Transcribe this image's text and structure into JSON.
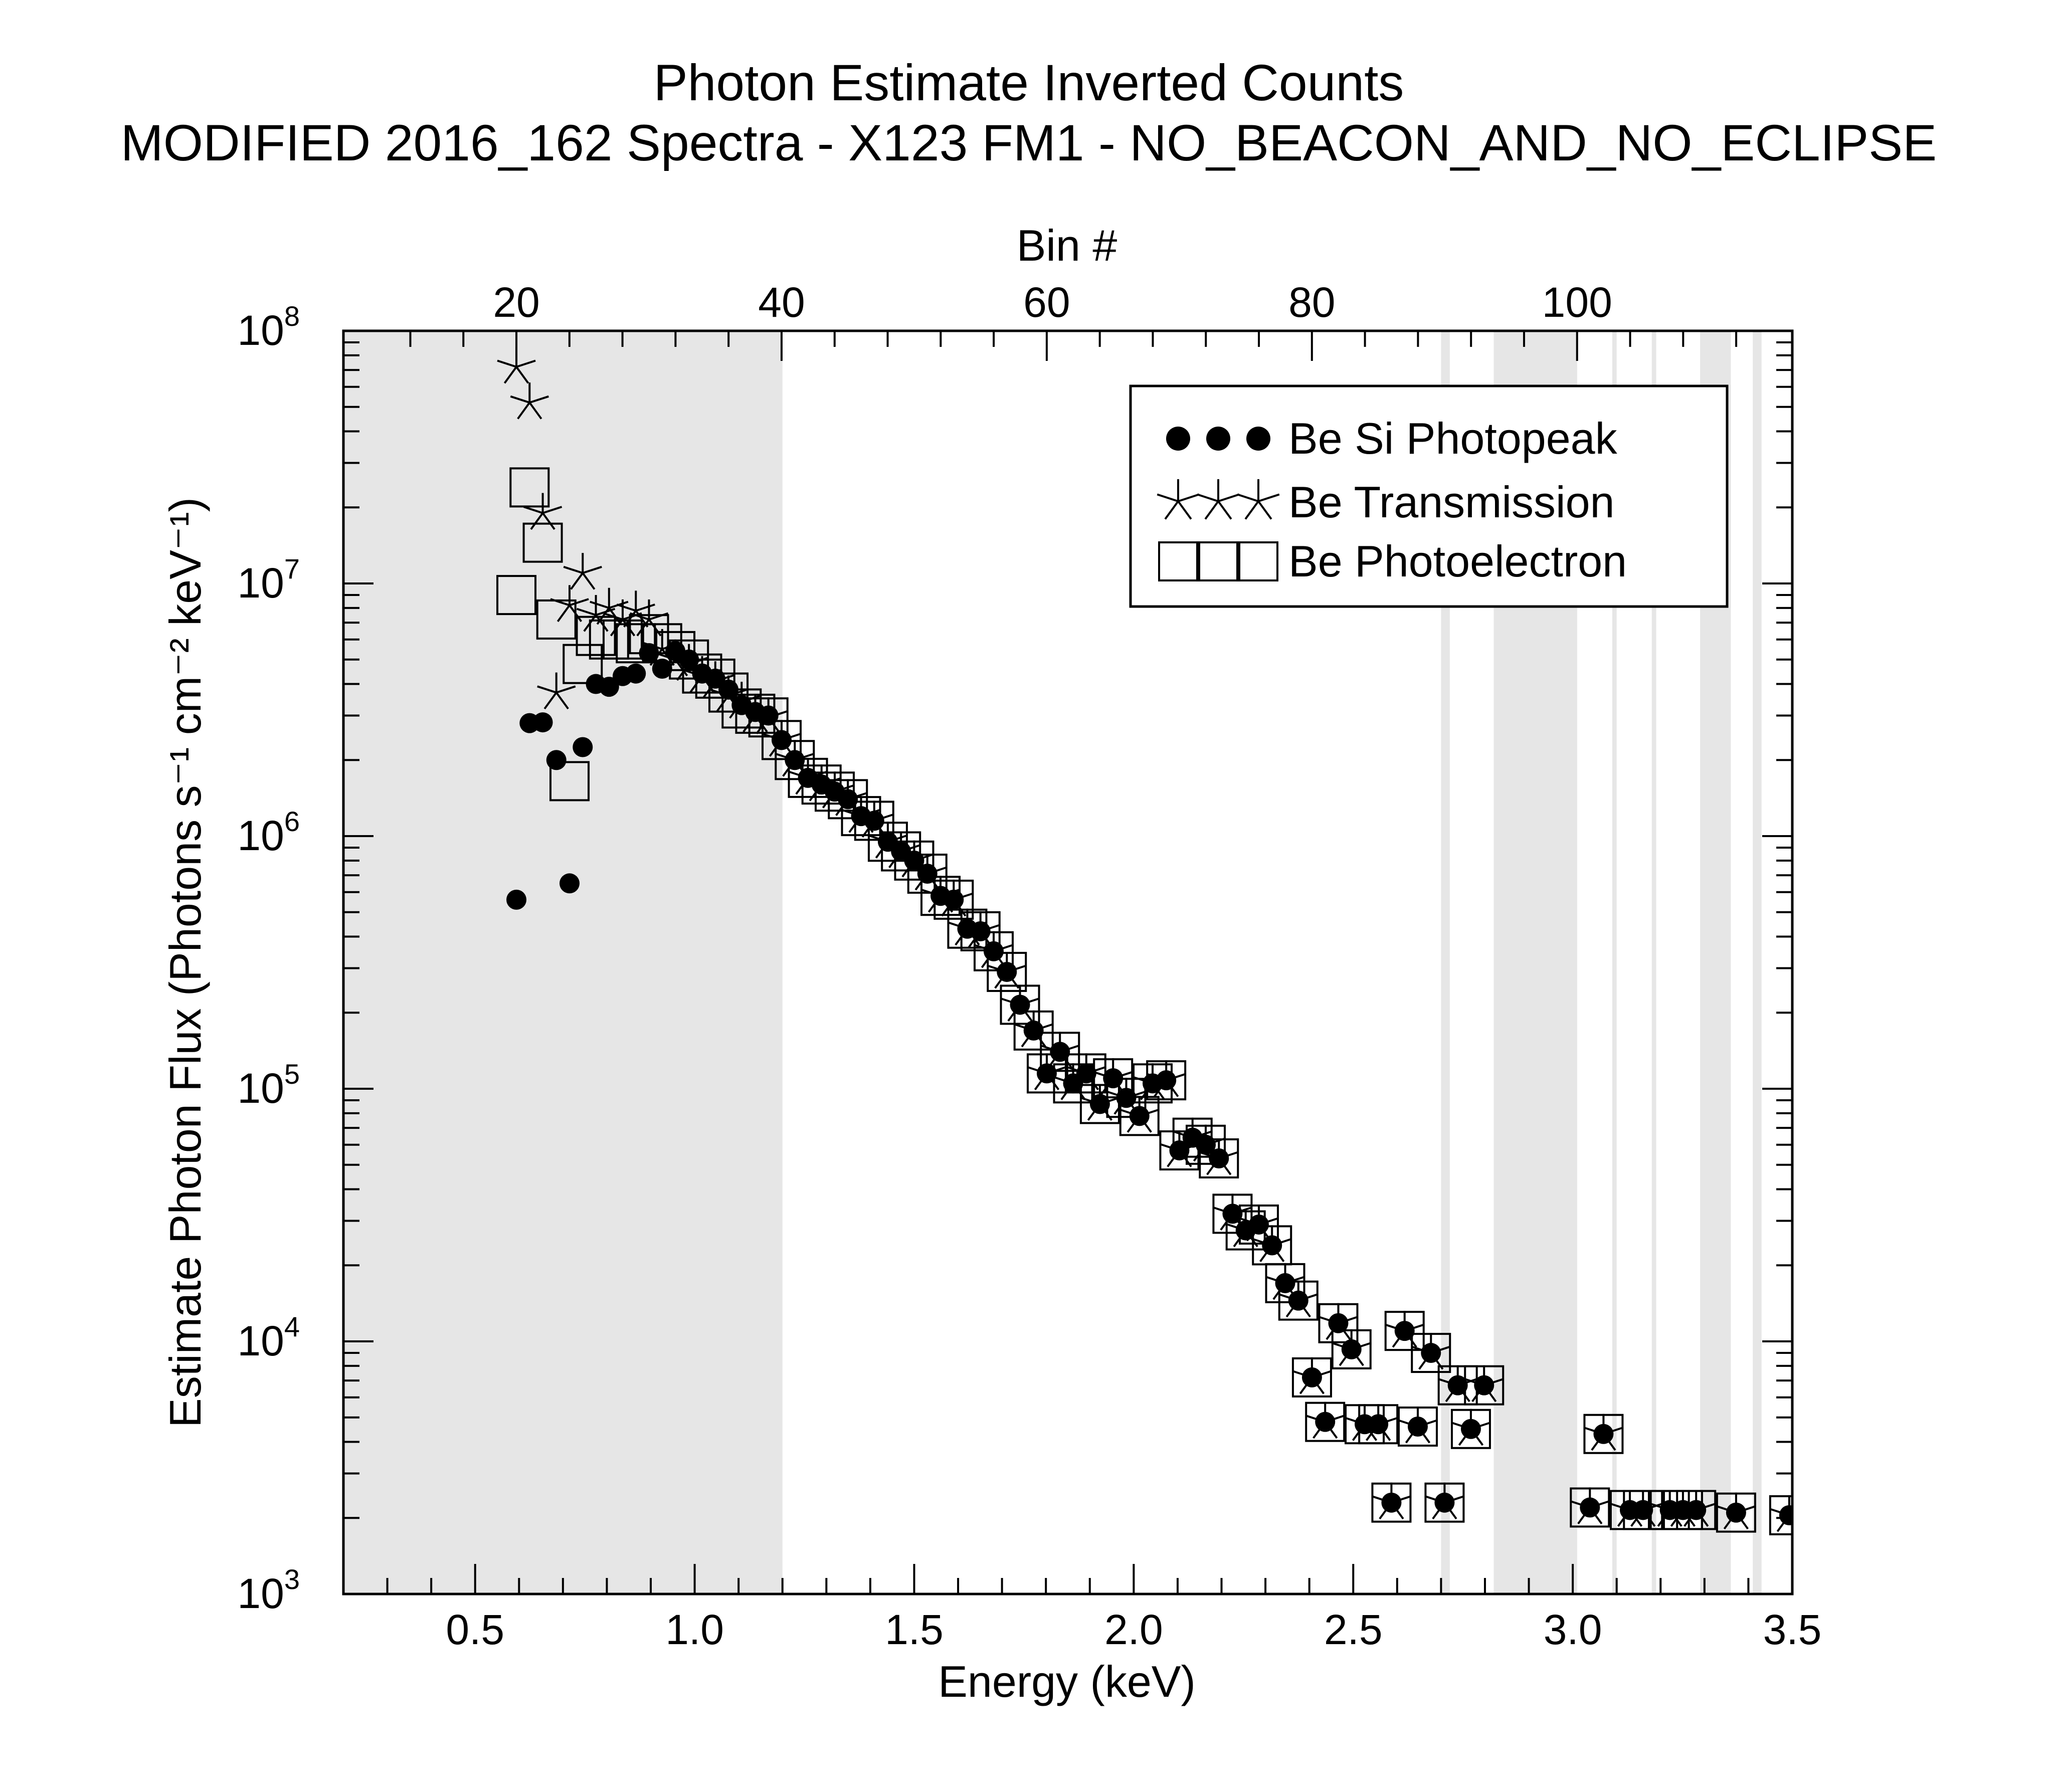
{
  "chart_data": {
    "type": "scatter",
    "title": "Photon Estimate Inverted Counts",
    "subtitle": "MODIFIED 2016_162 Spectra - X123 FM1 - NO_BEACON_AND_NO_ECLIPSE",
    "xlabel": "Energy (keV)",
    "ylabel": "Estimate Photon Flux (Photons s⁻¹ cm⁻² keV⁻¹)",
    "x2label": "Bin #",
    "xlim": [
      0.2,
      3.5
    ],
    "ylim": [
      1000,
      100000000
    ],
    "yscale": "log",
    "x_ticks": [
      {
        "value": 0.5,
        "label": "0.5"
      },
      {
        "value": 1.0,
        "label": "1.0"
      },
      {
        "value": 1.5,
        "label": "1.5"
      },
      {
        "value": 2.0,
        "label": "2.0"
      },
      {
        "value": 2.5,
        "label": "2.5"
      },
      {
        "value": 3.0,
        "label": "3.0"
      },
      {
        "value": 3.5,
        "label": "3.5"
      }
    ],
    "y_ticks": [
      {
        "value": 1000,
        "base": "10",
        "exp": "3"
      },
      {
        "value": 10000,
        "base": "10",
        "exp": "4"
      },
      {
        "value": 100000,
        "base": "10",
        "exp": "5"
      },
      {
        "value": 1000000,
        "base": "10",
        "exp": "6"
      },
      {
        "value": 10000000,
        "base": "10",
        "exp": "7"
      },
      {
        "value": 100000000,
        "base": "10",
        "exp": "8"
      }
    ],
    "bin_ticks": [
      {
        "bin": 20,
        "label": "20"
      },
      {
        "bin": 40,
        "label": "40"
      },
      {
        "bin": 60,
        "label": "60"
      },
      {
        "bin": 80,
        "label": "80"
      },
      {
        "bin": 100,
        "label": "100"
      }
    ],
    "shaded_regions_keV": [
      [
        0.2,
        1.2
      ],
      [
        2.7,
        2.72
      ],
      [
        2.82,
        3.01
      ],
      [
        3.09,
        3.1
      ],
      [
        3.18,
        3.19
      ],
      [
        3.29,
        3.36
      ],
      [
        3.41,
        3.43
      ]
    ],
    "legend": {
      "position": "top-right",
      "entries": [
        "Be Si Photopeak",
        "Be Transmission",
        "Be Photoelectron"
      ]
    },
    "shading_color": "#e6e6e6",
    "series": [
      {
        "name": "Be Si Photopeak",
        "marker": "filled-circle",
        "points": [
          [
            0.594,
            560000
          ],
          [
            0.624,
            2800000
          ],
          [
            0.654,
            2820000
          ],
          [
            0.685,
            2000000
          ],
          [
            0.715,
            650000
          ],
          [
            0.745,
            2250000
          ],
          [
            0.775,
            4000000
          ],
          [
            0.805,
            3900000
          ],
          [
            0.836,
            4300000
          ],
          [
            0.866,
            4400000
          ],
          [
            0.896,
            5300000
          ],
          [
            0.926,
            4600000
          ],
          [
            0.956,
            5400000
          ],
          [
            0.987,
            5000000
          ],
          [
            1.017,
            4400000
          ],
          [
            1.047,
            4200000
          ],
          [
            1.077,
            3800000
          ],
          [
            1.107,
            3300000
          ],
          [
            1.138,
            3100000
          ],
          [
            1.168,
            3000000
          ],
          [
            1.198,
            2400000
          ],
          [
            1.228,
            2000000
          ],
          [
            1.258,
            1700000
          ],
          [
            1.289,
            1600000
          ],
          [
            1.319,
            1500000
          ],
          [
            1.349,
            1400000
          ],
          [
            1.379,
            1200000
          ],
          [
            1.409,
            1150000
          ],
          [
            1.44,
            950000
          ],
          [
            1.47,
            870000
          ],
          [
            1.5,
            800000
          ],
          [
            1.53,
            710000
          ],
          [
            1.56,
            580000
          ],
          [
            1.59,
            560000
          ],
          [
            1.621,
            430000
          ],
          [
            1.651,
            420000
          ],
          [
            1.681,
            350000
          ],
          [
            1.711,
            290000
          ],
          [
            1.741,
            215000
          ],
          [
            1.772,
            170000
          ],
          [
            1.802,
            115000
          ],
          [
            1.832,
            140000
          ],
          [
            1.862,
            105000
          ],
          [
            1.892,
            115000
          ],
          [
            1.923,
            87000
          ],
          [
            1.953,
            110000
          ],
          [
            1.983,
            92000
          ],
          [
            2.013,
            78000
          ],
          [
            2.043,
            105000
          ],
          [
            2.074,
            108000
          ],
          [
            2.104,
            57000
          ],
          [
            2.134,
            64000
          ],
          [
            2.164,
            60000
          ],
          [
            2.194,
            53000
          ],
          [
            2.225,
            32000
          ],
          [
            2.255,
            27500
          ],
          [
            2.285,
            29000
          ],
          [
            2.315,
            24000
          ],
          [
            2.345,
            17000
          ],
          [
            2.375,
            14500
          ],
          [
            2.406,
            7200
          ],
          [
            2.436,
            4800
          ],
          [
            2.466,
            11800
          ],
          [
            2.496,
            9300
          ],
          [
            2.526,
            4700
          ],
          [
            2.557,
            4700
          ],
          [
            2.587,
            2300
          ],
          [
            2.617,
            11000
          ],
          [
            2.647,
            4600
          ],
          [
            2.677,
            9000
          ],
          [
            2.708,
            2300
          ],
          [
            2.738,
            6700
          ],
          [
            2.768,
            4500
          ],
          [
            2.798,
            6700
          ],
          [
            3.039,
            2200
          ],
          [
            3.07,
            4300
          ],
          [
            3.13,
            2150
          ],
          [
            3.16,
            2150
          ],
          [
            3.221,
            2150
          ],
          [
            3.251,
            2150
          ],
          [
            3.281,
            2150
          ],
          [
            3.372,
            2100
          ],
          [
            3.493,
            2050
          ]
        ]
      },
      {
        "name": "Be Transmission",
        "marker": "star",
        "points": [
          [
            0.594,
            72000000
          ],
          [
            0.624,
            52000000
          ],
          [
            0.654,
            19000000
          ],
          [
            0.685,
            3700000
          ],
          [
            0.715,
            8200000
          ],
          [
            0.745,
            11000000
          ],
          [
            0.775,
            7500000
          ],
          [
            0.805,
            8000000
          ],
          [
            0.836,
            7200000
          ],
          [
            0.866,
            7800000
          ],
          [
            0.896,
            7200000
          ],
          [
            0.926,
            5500000
          ],
          [
            0.956,
            5000000
          ],
          [
            0.987,
            4800000
          ],
          [
            1.017,
            4300000
          ],
          [
            1.047,
            4100000
          ],
          [
            1.077,
            3600000
          ],
          [
            1.107,
            3400000
          ],
          [
            1.138,
            3000000
          ],
          [
            1.168,
            2950000
          ],
          [
            1.198,
            2400000
          ],
          [
            1.228,
            2000000
          ],
          [
            1.258,
            1700000
          ],
          [
            1.289,
            1600000
          ],
          [
            1.319,
            1500000
          ],
          [
            1.349,
            1400000
          ],
          [
            1.379,
            1200000
          ],
          [
            1.409,
            1150000
          ],
          [
            1.44,
            950000
          ],
          [
            1.47,
            870000
          ],
          [
            1.5,
            800000
          ],
          [
            1.53,
            710000
          ],
          [
            1.56,
            580000
          ],
          [
            1.59,
            560000
          ],
          [
            1.621,
            430000
          ],
          [
            1.651,
            420000
          ],
          [
            1.681,
            350000
          ],
          [
            1.711,
            290000
          ],
          [
            1.741,
            215000
          ],
          [
            1.772,
            170000
          ],
          [
            1.802,
            115000
          ],
          [
            1.832,
            140000
          ],
          [
            1.862,
            105000
          ],
          [
            1.892,
            115000
          ],
          [
            1.923,
            87000
          ],
          [
            1.953,
            110000
          ],
          [
            1.983,
            92000
          ],
          [
            2.013,
            78000
          ],
          [
            2.043,
            105000
          ],
          [
            2.074,
            108000
          ],
          [
            2.104,
            57000
          ],
          [
            2.134,
            64000
          ],
          [
            2.164,
            60000
          ],
          [
            2.194,
            53000
          ],
          [
            2.225,
            32000
          ],
          [
            2.255,
            27500
          ],
          [
            2.285,
            29000
          ],
          [
            2.315,
            24000
          ],
          [
            2.345,
            17000
          ],
          [
            2.375,
            14500
          ],
          [
            2.406,
            7200
          ],
          [
            2.436,
            4800
          ],
          [
            2.466,
            11800
          ],
          [
            2.496,
            9300
          ],
          [
            2.526,
            4700
          ],
          [
            2.557,
            4700
          ],
          [
            2.587,
            2300
          ],
          [
            2.617,
            11000
          ],
          [
            2.647,
            4600
          ],
          [
            2.677,
            9000
          ],
          [
            2.708,
            2300
          ],
          [
            2.738,
            6700
          ],
          [
            2.768,
            4500
          ],
          [
            2.798,
            6700
          ],
          [
            3.039,
            2200
          ],
          [
            3.07,
            4300
          ],
          [
            3.13,
            2150
          ],
          [
            3.16,
            2150
          ],
          [
            3.221,
            2150
          ],
          [
            3.251,
            2150
          ],
          [
            3.281,
            2150
          ],
          [
            3.372,
            2100
          ],
          [
            3.493,
            2050
          ]
        ]
      },
      {
        "name": "Be Photoelectron",
        "marker": "open-square",
        "points": [
          [
            0.594,
            9000000
          ],
          [
            0.624,
            24000000
          ],
          [
            0.654,
            14500000
          ],
          [
            0.685,
            7200000
          ],
          [
            0.715,
            1650000
          ],
          [
            0.745,
            4800000
          ],
          [
            0.775,
            6200000
          ],
          [
            0.805,
            6000000
          ],
          [
            0.836,
            6000000
          ],
          [
            0.866,
            5800000
          ],
          [
            0.896,
            6300000
          ],
          [
            0.926,
            5800000
          ],
          [
            0.956,
            5400000
          ],
          [
            0.987,
            5000000
          ],
          [
            1.017,
            4400000
          ],
          [
            1.047,
            4200000
          ],
          [
            1.077,
            3700000
          ],
          [
            1.107,
            3200000
          ],
          [
            1.138,
            3050000
          ],
          [
            1.168,
            2950000
          ],
          [
            1.198,
            2400000
          ],
          [
            1.228,
            2000000
          ],
          [
            1.258,
            1700000
          ],
          [
            1.289,
            1600000
          ],
          [
            1.319,
            1500000
          ],
          [
            1.349,
            1400000
          ],
          [
            1.379,
            1200000
          ],
          [
            1.409,
            1150000
          ],
          [
            1.44,
            950000
          ],
          [
            1.47,
            870000
          ],
          [
            1.5,
            800000
          ],
          [
            1.53,
            710000
          ],
          [
            1.56,
            580000
          ],
          [
            1.59,
            560000
          ],
          [
            1.621,
            430000
          ],
          [
            1.651,
            420000
          ],
          [
            1.681,
            350000
          ],
          [
            1.711,
            290000
          ],
          [
            1.741,
            215000
          ],
          [
            1.772,
            170000
          ],
          [
            1.802,
            115000
          ],
          [
            1.832,
            140000
          ],
          [
            1.862,
            105000
          ],
          [
            1.892,
            115000
          ],
          [
            1.923,
            87000
          ],
          [
            1.953,
            110000
          ],
          [
            1.983,
            92000
          ],
          [
            2.013,
            78000
          ],
          [
            2.043,
            105000
          ],
          [
            2.074,
            108000
          ],
          [
            2.104,
            57000
          ],
          [
            2.134,
            64000
          ],
          [
            2.164,
            60000
          ],
          [
            2.194,
            53000
          ],
          [
            2.225,
            32000
          ],
          [
            2.255,
            27500
          ],
          [
            2.285,
            29000
          ],
          [
            2.315,
            24000
          ],
          [
            2.345,
            17000
          ],
          [
            2.375,
            14500
          ],
          [
            2.406,
            7200
          ],
          [
            2.436,
            4800
          ],
          [
            2.466,
            11800
          ],
          [
            2.496,
            9300
          ],
          [
            2.526,
            4700
          ],
          [
            2.557,
            4700
          ],
          [
            2.587,
            2300
          ],
          [
            2.617,
            11000
          ],
          [
            2.647,
            4600
          ],
          [
            2.677,
            9000
          ],
          [
            2.708,
            2300
          ],
          [
            2.738,
            6700
          ],
          [
            2.768,
            4500
          ],
          [
            2.798,
            6700
          ],
          [
            3.039,
            2200
          ],
          [
            3.07,
            4300
          ],
          [
            3.13,
            2150
          ],
          [
            3.16,
            2150
          ],
          [
            3.221,
            2150
          ],
          [
            3.251,
            2150
          ],
          [
            3.281,
            2150
          ],
          [
            3.372,
            2100
          ],
          [
            3.493,
            2050
          ]
        ]
      }
    ]
  }
}
